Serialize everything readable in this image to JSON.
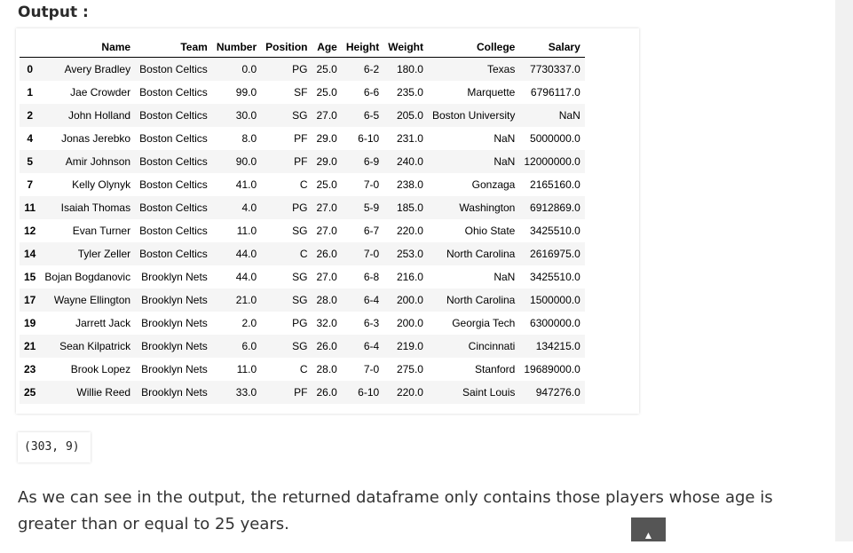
{
  "heading": "Output :",
  "table": {
    "index_header": "",
    "columns": [
      "Name",
      "Team",
      "Number",
      "Position",
      "Age",
      "Height",
      "Weight",
      "College",
      "Salary"
    ],
    "rows": [
      [
        "0",
        "Avery Bradley",
        "Boston Celtics",
        "0.0",
        "PG",
        "25.0",
        "6-2",
        "180.0",
        "Texas",
        "7730337.0"
      ],
      [
        "1",
        "Jae Crowder",
        "Boston Celtics",
        "99.0",
        "SF",
        "25.0",
        "6-6",
        "235.0",
        "Marquette",
        "6796117.0"
      ],
      [
        "2",
        "John Holland",
        "Boston Celtics",
        "30.0",
        "SG",
        "27.0",
        "6-5",
        "205.0",
        "Boston University",
        "NaN"
      ],
      [
        "4",
        "Jonas Jerebko",
        "Boston Celtics",
        "8.0",
        "PF",
        "29.0",
        "6-10",
        "231.0",
        "NaN",
        "5000000.0"
      ],
      [
        "5",
        "Amir Johnson",
        "Boston Celtics",
        "90.0",
        "PF",
        "29.0",
        "6-9",
        "240.0",
        "NaN",
        "12000000.0"
      ],
      [
        "7",
        "Kelly Olynyk",
        "Boston Celtics",
        "41.0",
        "C",
        "25.0",
        "7-0",
        "238.0",
        "Gonzaga",
        "2165160.0"
      ],
      [
        "11",
        "Isaiah Thomas",
        "Boston Celtics",
        "4.0",
        "PG",
        "27.0",
        "5-9",
        "185.0",
        "Washington",
        "6912869.0"
      ],
      [
        "12",
        "Evan Turner",
        "Boston Celtics",
        "11.0",
        "SG",
        "27.0",
        "6-7",
        "220.0",
        "Ohio State",
        "3425510.0"
      ],
      [
        "14",
        "Tyler Zeller",
        "Boston Celtics",
        "44.0",
        "C",
        "26.0",
        "7-0",
        "253.0",
        "North Carolina",
        "2616975.0"
      ],
      [
        "15",
        "Bojan Bogdanovic",
        "Brooklyn Nets",
        "44.0",
        "SG",
        "27.0",
        "6-8",
        "216.0",
        "NaN",
        "3425510.0"
      ],
      [
        "17",
        "Wayne Ellington",
        "Brooklyn Nets",
        "21.0",
        "SG",
        "28.0",
        "6-4",
        "200.0",
        "North Carolina",
        "1500000.0"
      ],
      [
        "19",
        "Jarrett Jack",
        "Brooklyn Nets",
        "2.0",
        "PG",
        "32.0",
        "6-3",
        "200.0",
        "Georgia Tech",
        "6300000.0"
      ],
      [
        "21",
        "Sean Kilpatrick",
        "Brooklyn Nets",
        "6.0",
        "SG",
        "26.0",
        "6-4",
        "219.0",
        "Cincinnati",
        "134215.0"
      ],
      [
        "23",
        "Brook Lopez",
        "Brooklyn Nets",
        "11.0",
        "C",
        "28.0",
        "7-0",
        "275.0",
        "Stanford",
        "19689000.0"
      ],
      [
        "25",
        "Willie Reed",
        "Brooklyn Nets",
        "33.0",
        "PF",
        "26.0",
        "6-10",
        "220.0",
        "Saint Louis",
        "947276.0"
      ]
    ]
  },
  "shape_output": "(303, 9)",
  "description": "As we can see in the output, the returned dataframe only contains those players whose age is greater than or equal to 25 years.",
  "scroll_top": {
    "icon": "up-triangle-icon",
    "glyph": "▲"
  }
}
